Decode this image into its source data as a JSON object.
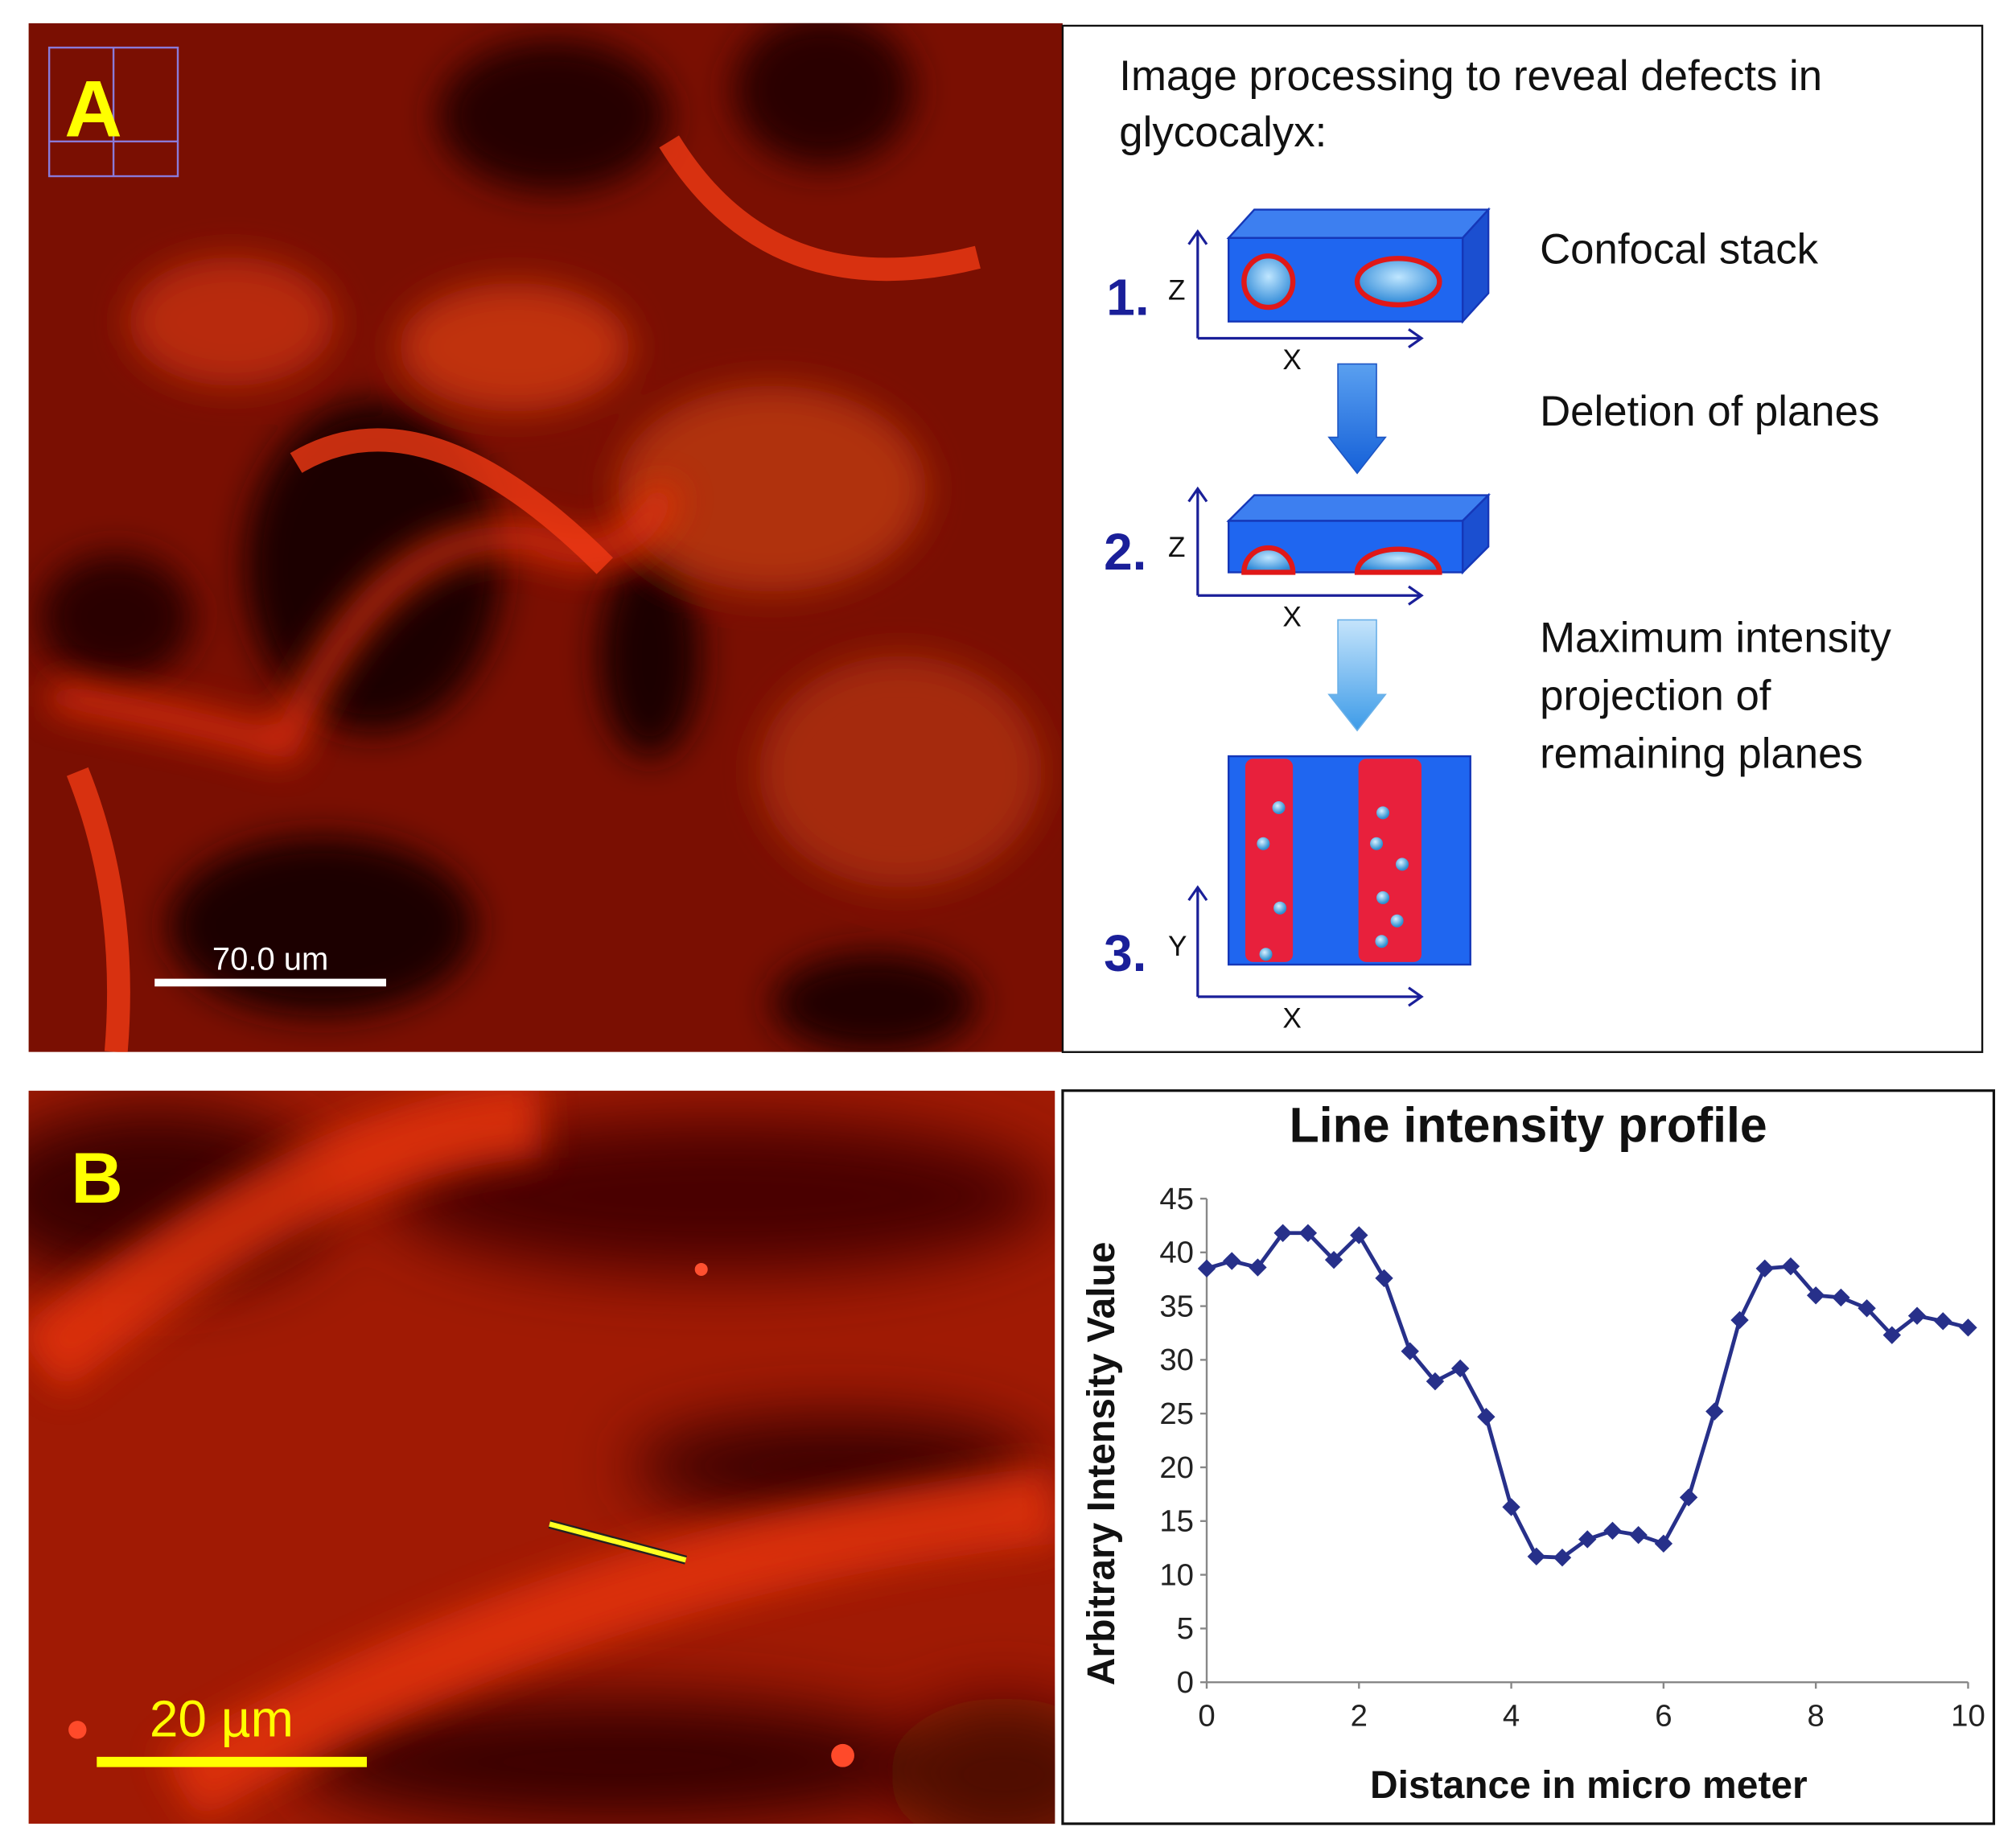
{
  "panel_a": {
    "label": "A",
    "scale_bar": "70.0 um"
  },
  "diagram": {
    "title_lines": [
      "Image processing to reveal defects in",
      "glycocalyx:"
    ],
    "steps": [
      {
        "number": "1.",
        "vertical_axis": "Z",
        "horizontal_axis": "X"
      },
      {
        "number": "2.",
        "vertical_axis": "Z",
        "horizontal_axis": "X"
      },
      {
        "number": "3.",
        "vertical_axis": "Y",
        "horizontal_axis": "X"
      }
    ],
    "descriptions": [
      [
        "Confocal stack"
      ],
      [
        "Deletion of planes"
      ],
      [
        "Maximum intensity",
        "projection of",
        "remaining planes"
      ]
    ]
  },
  "panel_b": {
    "label": "B",
    "scale_bar": "20 µm"
  },
  "chart_data": {
    "type": "line",
    "title": "Line intensity profile",
    "x_label": "Distance in micro meter",
    "y_label": "Arbitrary  Intensity Value",
    "x": [
      0,
      0.33,
      0.67,
      1,
      1.33,
      1.67,
      2,
      2.33,
      2.67,
      3,
      3.33,
      3.67,
      4,
      4.33,
      4.67,
      5,
      5.33,
      5.67,
      6,
      6.33,
      6.67,
      7,
      7.33,
      7.67,
      8,
      8.33,
      8.67,
      9,
      9.33,
      9.67,
      10
    ],
    "values": [
      38.5,
      39.2,
      38.6,
      41.8,
      41.8,
      39.3,
      41.6,
      37.6,
      30.8,
      28,
      29.2,
      24.7,
      16.3,
      11.7,
      11.6,
      13.3,
      14.1,
      13.7,
      12.9,
      17.2,
      25.2,
      33.7,
      38.5,
      38.7,
      36,
      35.8,
      34.8,
      32.3,
      34.1,
      33.6,
      33
    ],
    "color": "#27308a",
    "xlim": [
      0,
      10
    ],
    "xticks": [
      0,
      2,
      4,
      6,
      8,
      10
    ],
    "ylim": [
      0,
      45
    ],
    "yticks": [
      0,
      5,
      10,
      15,
      20,
      25,
      30,
      35,
      40,
      45
    ],
    "grid": false
  }
}
